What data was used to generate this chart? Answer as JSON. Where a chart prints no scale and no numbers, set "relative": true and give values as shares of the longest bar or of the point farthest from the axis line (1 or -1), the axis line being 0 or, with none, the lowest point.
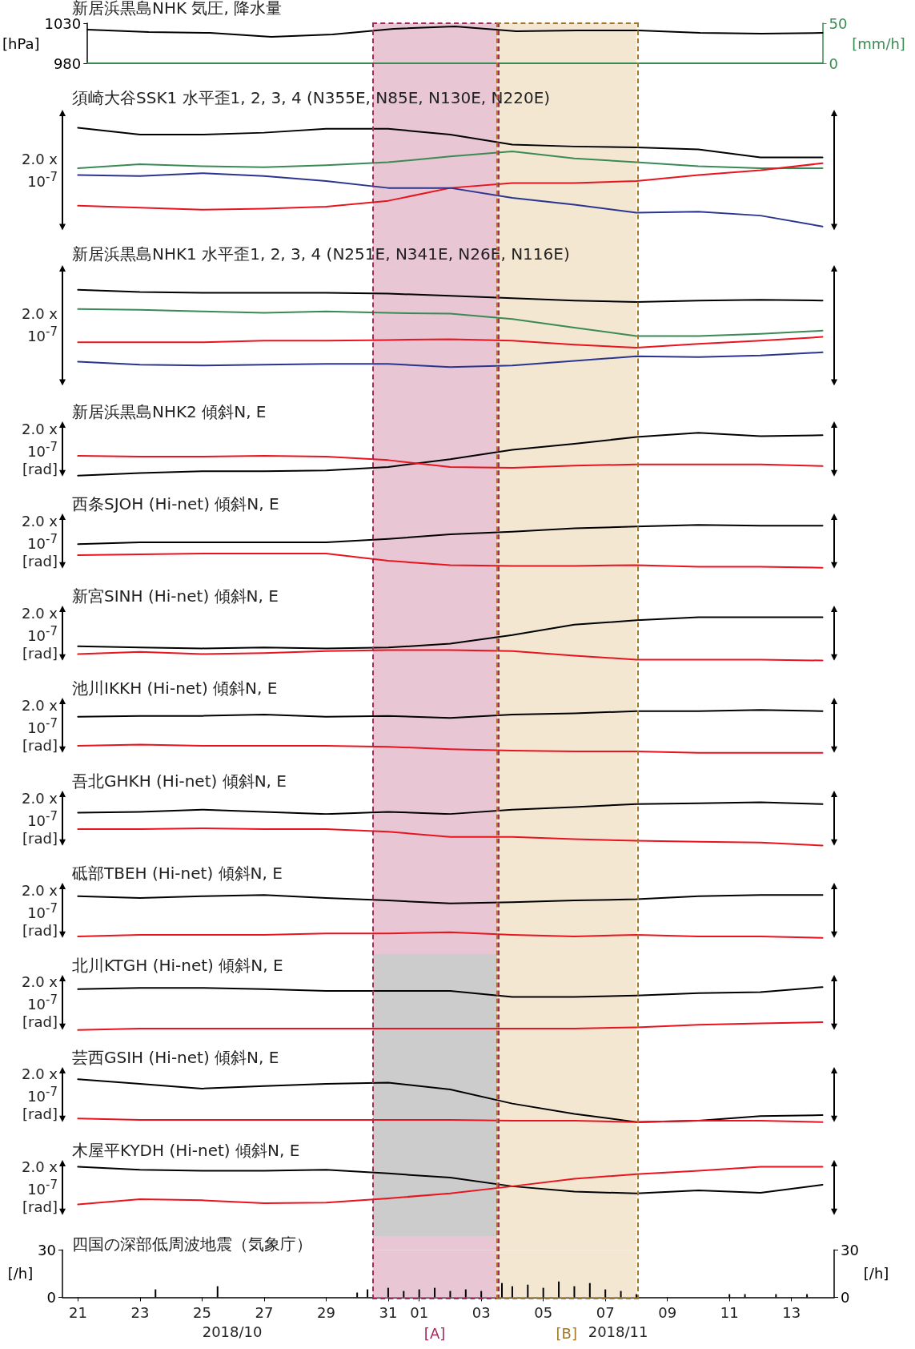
{
  "chart_data": [
    {
      "type": "line",
      "title": "新居浜黒島NHK 気圧, 降水量",
      "ylabel": "[hPa]",
      "y2label": "[mm/h]",
      "ylim": [
        980,
        1030
      ],
      "yticks": [
        980,
        1030
      ],
      "y2lim": [
        0,
        50
      ],
      "y2ticks": [
        0,
        50
      ],
      "tick_labels": "y",
      "categories": [
        null,
        null,
        null,
        null,
        null,
        null,
        null,
        null,
        null,
        null,
        null,
        null,
        null
      ],
      "series": [
        {
          "color": "#000000",
          "values": [
            1022,
            1019,
            1018,
            1013,
            1016,
            1023,
            1026,
            1020,
            1021,
            1021,
            1018,
            1017,
            1018
          ]
        },
        {
          "color": "#3a8a55",
          "axis": "y2",
          "values": [
            0,
            0,
            0,
            0,
            0,
            0,
            0,
            0,
            0,
            0,
            0,
            0,
            0
          ]
        }
      ]
    },
    {
      "type": "line",
      "title": "須崎大谷SSK1 水平歪1, 2, 3, 4 (N355E, N85E, N130E, N220E)",
      "ylabel": "2.0 x\n10$^{-7}$",
      "relative": true,
      "tick_labels": false,
      "categories": [
        null,
        null,
        null,
        null,
        null,
        null,
        null,
        null,
        null,
        null,
        null,
        null,
        null
      ],
      "series": [
        {
          "color": "#000000",
          "values": [
            1,
            0.93,
            0.93,
            0.95,
            0.99,
            0.99,
            0.93,
            0.83,
            0.81,
            0.8,
            0.78,
            0.7,
            0.7
          ]
        },
        {
          "color": "#3a8a55",
          "values": [
            0.59,
            0.63,
            0.61,
            0.6,
            0.62,
            0.65,
            0.71,
            0.76,
            0.69,
            0.65,
            0.61,
            0.59,
            0.59
          ]
        },
        {
          "color": "#e8141e",
          "values": [
            0.21,
            0.19,
            0.17,
            0.18,
            0.2,
            0.26,
            0.39,
            0.44,
            0.44,
            0.46,
            0.52,
            0.57,
            0.64
          ]
        },
        {
          "color": "#2b3590",
          "values": [
            0.52,
            0.51,
            0.54,
            0.51,
            0.46,
            0.39,
            0.39,
            0.29,
            0.22,
            0.14,
            0.15,
            0.11,
            0
          ]
        }
      ]
    },
    {
      "type": "line",
      "title": "新居浜黒島NHK1 水平歪1, 2, 3, 4 (N251E, N341E, N26E, N116E)",
      "ylabel": "2.0 x\n10$^{-7}$",
      "relative": true,
      "tick_labels": false,
      "categories": [
        null,
        null,
        null,
        null,
        null,
        null,
        null,
        null,
        null,
        null,
        null,
        null,
        null
      ],
      "series": [
        {
          "color": "#000000",
          "values": [
            1,
            0.97,
            0.96,
            0.96,
            0.96,
            0.95,
            0.92,
            0.89,
            0.86,
            0.84,
            0.86,
            0.87,
            0.86
          ]
        },
        {
          "color": "#3a8a55",
          "values": [
            0.75,
            0.74,
            0.72,
            0.7,
            0.72,
            0.7,
            0.69,
            0.62,
            0.51,
            0.4,
            0.4,
            0.43,
            0.47
          ]
        },
        {
          "color": "#e8141e",
          "values": [
            0.32,
            0.32,
            0.32,
            0.34,
            0.34,
            0.35,
            0.36,
            0.34,
            0.29,
            0.25,
            0.3,
            0.34,
            0.39
          ]
        },
        {
          "color": "#2b3590",
          "values": [
            0.07,
            0.03,
            0.02,
            0.03,
            0.04,
            0.04,
            0,
            0.02,
            0.08,
            0.14,
            0.13,
            0.15,
            0.19
          ]
        }
      ]
    },
    {
      "type": "line",
      "title": "新居浜黒島NHK2 傾斜N, E",
      "ylabel": "2.0 x\n10$^{-7}$\n[rad]",
      "relative": true,
      "tick_labels": false,
      "categories": [
        null,
        null,
        null,
        null,
        null,
        null,
        null,
        null,
        null,
        null,
        null,
        null,
        null
      ],
      "series": [
        {
          "color": "#000000",
          "values": [
            0,
            0.06,
            0.1,
            0.1,
            0.12,
            0.2,
            0.38,
            0.6,
            0.74,
            0.9,
            1,
            0.92,
            0.94
          ]
        },
        {
          "color": "#e8141e",
          "values": [
            0.46,
            0.44,
            0.44,
            0.46,
            0.44,
            0.36,
            0.2,
            0.18,
            0.23,
            0.26,
            0.26,
            0.26,
            0.22
          ]
        }
      ]
    },
    {
      "type": "line",
      "title": "西条SJOH (Hi-net) 傾斜N, E",
      "ylabel": "2.0 x\n10$^{-7}$\n[rad]",
      "relative": true,
      "tick_labels": false,
      "categories": [
        null,
        null,
        null,
        null,
        null,
        null,
        null,
        null,
        null,
        null,
        null,
        null,
        null
      ],
      "series": [
        {
          "color": "#000000",
          "values": [
            0.55,
            0.59,
            0.59,
            0.59,
            0.59,
            0.67,
            0.78,
            0.84,
            0.92,
            0.96,
            1,
            0.98,
            0.98
          ]
        },
        {
          "color": "#e8141e",
          "values": [
            0.29,
            0.31,
            0.33,
            0.33,
            0.33,
            0.16,
            0.06,
            0.04,
            0.04,
            0.06,
            0.02,
            0.02,
            0
          ]
        }
      ]
    },
    {
      "type": "line",
      "title": "新宮SINH (Hi-net) 傾斜N, E",
      "ylabel": "2.0 x\n10$^{-7}$\n[rad]",
      "relative": true,
      "tick_labels": false,
      "categories": [
        null,
        null,
        null,
        null,
        null,
        null,
        null,
        null,
        null,
        null,
        null,
        null,
        null
      ],
      "series": [
        {
          "color": "#000000",
          "values": [
            0.33,
            0.3,
            0.28,
            0.3,
            0.28,
            0.3,
            0.39,
            0.59,
            0.83,
            0.93,
            1,
            1,
            1
          ]
        },
        {
          "color": "#e8141e",
          "values": [
            0.15,
            0.2,
            0.15,
            0.17,
            0.22,
            0.24,
            0.24,
            0.22,
            0.11,
            0.02,
            0.02,
            0.02,
            0
          ]
        }
      ]
    },
    {
      "type": "line",
      "title": "池川IKKH (Hi-net) 傾斜N, E",
      "ylabel": "2.0 x\n10$^{-7}$\n[rad]",
      "relative": true,
      "tick_labels": false,
      "categories": [
        null,
        null,
        null,
        null,
        null,
        null,
        null,
        null,
        null,
        null,
        null,
        null,
        null
      ],
      "series": [
        {
          "color": "#000000",
          "values": [
            0.84,
            0.86,
            0.86,
            0.89,
            0.84,
            0.86,
            0.81,
            0.89,
            0.92,
            0.97,
            0.97,
            1,
            0.97
          ]
        },
        {
          "color": "#e8141e",
          "values": [
            0.16,
            0.19,
            0.16,
            0.16,
            0.16,
            0.14,
            0.08,
            0.05,
            0.03,
            0.03,
            0,
            0,
            0
          ]
        }
      ]
    },
    {
      "type": "line",
      "title": "吾北GHKH (Hi-net) 傾斜N, E",
      "ylabel": "2.0 x\n10$^{-7}$\n[rad]",
      "relative": true,
      "tick_labels": false,
      "categories": [
        null,
        null,
        null,
        null,
        null,
        null,
        null,
        null,
        null,
        null,
        null,
        null,
        null
      ],
      "series": [
        {
          "color": "#000000",
          "values": [
            0.76,
            0.78,
            0.83,
            0.78,
            0.73,
            0.78,
            0.73,
            0.83,
            0.89,
            0.96,
            0.98,
            1,
            0.96
          ]
        },
        {
          "color": "#e8141e",
          "values": [
            0.38,
            0.38,
            0.4,
            0.38,
            0.38,
            0.32,
            0.2,
            0.2,
            0.15,
            0.11,
            0.09,
            0.07,
            0
          ]
        }
      ]
    },
    {
      "type": "line",
      "title": "砥部TBEH (Hi-net) 傾斜N, E",
      "ylabel": "2.0 x\n10$^{-7}$\n[rad]",
      "relative": true,
      "tick_labels": false,
      "categories": [
        null,
        null,
        null,
        null,
        null,
        null,
        null,
        null,
        null,
        null,
        null,
        null,
        null
      ],
      "series": [
        {
          "color": "#000000",
          "values": [
            0.97,
            0.93,
            0.97,
            1,
            0.93,
            0.87,
            0.8,
            0.83,
            0.87,
            0.9,
            0.97,
            1,
            1
          ]
        },
        {
          "color": "#e8141e",
          "values": [
            0.03,
            0.07,
            0.07,
            0.07,
            0.1,
            0.1,
            0.13,
            0.07,
            0.03,
            0.07,
            0.03,
            0.03,
            0
          ]
        }
      ]
    },
    {
      "type": "line",
      "title": "北川KTGH (Hi-net) 傾斜N, E",
      "ylabel": "2.0 x\n10$^{-7}$\n[rad]",
      "relative": true,
      "tick_labels": false,
      "categories": [
        null,
        null,
        null,
        null,
        null,
        null,
        null,
        null,
        null,
        null,
        null,
        null,
        null
      ],
      "series": [
        {
          "color": "#000000",
          "values": [
            0.95,
            0.98,
            0.98,
            0.95,
            0.91,
            0.91,
            0.91,
            0.77,
            0.77,
            0.8,
            0.86,
            0.88,
            1
          ]
        },
        {
          "color": "#e8141e",
          "values": [
            0,
            0.03,
            0.03,
            0.03,
            0.03,
            0.03,
            0.03,
            0.03,
            0.03,
            0.06,
            0.12,
            0.15,
            0.18
          ]
        }
      ]
    },
    {
      "type": "line",
      "title": "芸西GSIH (Hi-net) 傾斜N, E",
      "ylabel": "2.0 x\n10$^{-7}$\n[rad]",
      "relative": true,
      "tick_labels": false,
      "categories": [
        null,
        null,
        null,
        null,
        null,
        null,
        null,
        null,
        null,
        null,
        null,
        null,
        null
      ],
      "series": [
        {
          "color": "#000000",
          "values": [
            1,
            0.89,
            0.78,
            0.84,
            0.89,
            0.92,
            0.76,
            0.43,
            0.19,
            0,
            0.03,
            0.14,
            0.16
          ]
        },
        {
          "color": "#e8141e",
          "values": [
            0.08,
            0.05,
            0.05,
            0.05,
            0.05,
            0.05,
            0.05,
            0.03,
            0.03,
            0,
            0.03,
            0.03,
            0
          ]
        }
      ]
    },
    {
      "type": "line",
      "title": "木屋平KYDH (Hi-net) 傾斜N, E",
      "ylabel": "2.0 x\n10$^{-7}$\n[rad]",
      "relative": true,
      "tick_labels": false,
      "categories": [
        null,
        null,
        null,
        null,
        null,
        null,
        null,
        null,
        null,
        null,
        null,
        null,
        null
      ],
      "series": [
        {
          "color": "#000000",
          "values": [
            1,
            0.92,
            0.89,
            0.89,
            0.92,
            0.82,
            0.71,
            0.48,
            0.34,
            0.29,
            0.37,
            0.31,
            0.52
          ]
        },
        {
          "color": "#e8141e",
          "values": [
            0,
            0.14,
            0.11,
            0.03,
            0.05,
            0.16,
            0.29,
            0.48,
            0.68,
            0.8,
            0.89,
            1,
            1
          ]
        }
      ]
    },
    {
      "type": "bar",
      "title": "四国の深部低周波地震（気象庁）",
      "ylabel": "[/h]",
      "y2label": "[/h]",
      "ylim": [
        0,
        30
      ],
      "yticks": [
        0,
        30
      ],
      "y2lim": [
        0,
        30
      ],
      "y2ticks": [
        0,
        30
      ],
      "xlim": [
        "2018-10-20T12:00",
        "2018-11-14T09:00"
      ],
      "xticks": [
        {
          "value": "2018-10-21",
          "label": "21"
        },
        {
          "value": "2018-10-23",
          "label": "23"
        },
        {
          "value": "2018-10-25",
          "label": "25"
        },
        {
          "value": "2018-10-27",
          "label": "27"
        },
        {
          "value": "2018-10-29",
          "label": "29"
        },
        {
          "value": "2018-10-31",
          "label": "31"
        },
        {
          "value": "2018-11-01",
          "label": "01"
        },
        {
          "value": "2018-11-03",
          "label": "03"
        },
        {
          "value": "2018-11-05",
          "label": "05"
        },
        {
          "value": "2018-11-07",
          "label": "07"
        },
        {
          "value": "2018-11-09",
          "label": "09"
        },
        {
          "value": "2018-11-11",
          "label": "11"
        },
        {
          "value": "2018-11-13",
          "label": "13"
        }
      ],
      "series": [
        {
          "color": "#000000",
          "x": [
            "2018-10-23T12:00",
            "2018-10-25T12:00",
            "2018-10-30T00:00",
            "2018-10-30T08:00",
            "2018-10-31T00:00",
            "2018-10-31T12:00",
            "2018-11-01T00:00",
            "2018-11-01T12:00",
            "2018-11-02T00:00",
            "2018-11-02T12:00",
            "2018-11-03T00:00",
            "2018-11-03T16:00",
            "2018-11-04T00:00",
            "2018-11-04T12:00",
            "2018-11-05T00:00",
            "2018-11-05T12:00",
            "2018-11-06T00:00",
            "2018-11-06T12:00",
            "2018-11-07T00:00",
            "2018-11-07T12:00",
            "2018-11-08T00:00",
            "2018-11-11T00:00",
            "2018-11-11T12:00",
            "2018-11-12T12:00",
            "2018-11-13T12:00"
          ],
          "values": [
            5,
            7,
            3,
            5,
            6,
            4,
            5,
            6,
            4,
            5,
            4,
            9,
            7,
            8,
            6,
            10,
            7,
            9,
            5,
            4,
            2,
            2,
            2,
            2,
            2
          ]
        }
      ],
      "bands": [
        {
          "axis": "x",
          "from": "2018-10-30T12:00",
          "to": "2018-11-03T12:00",
          "color": "#e8c6d4",
          "label": "[A]"
        },
        {
          "axis": "x",
          "from": "2018-11-03T12:00",
          "to": "2018-11-08",
          "color": "#f3e7d2",
          "label": "[B]"
        }
      ],
      "annotations": [
        "2018/10",
        "2018/11"
      ]
    }
  ]
}
